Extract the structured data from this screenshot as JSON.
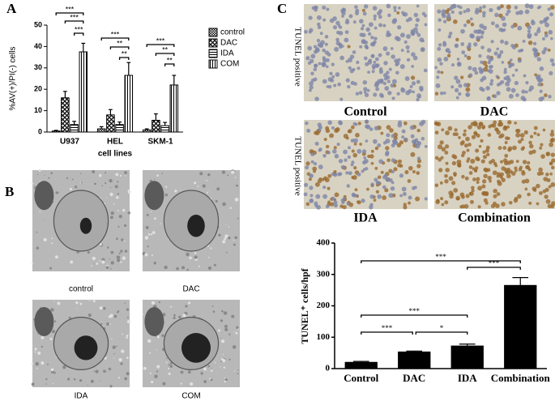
{
  "panel_labels": [
    "A",
    "B",
    "C"
  ],
  "chart_data": [
    {
      "type": "bar",
      "ylabel": "%AV(+)/PI(-) cells",
      "xlabel": "cell lines",
      "categories": [
        "U937",
        "HEL",
        "SKM-1"
      ],
      "series": [
        {
          "name": "control",
          "color": "#000000",
          "values": [
            0.5,
            1.5,
            1
          ],
          "errors": [
            0.3,
            1,
            0.5
          ]
        },
        {
          "name": "DAC",
          "color": "#000000",
          "values": [
            16,
            8,
            5.5
          ],
          "errors": [
            3,
            2.5,
            3
          ]
        },
        {
          "name": "IDA",
          "color": "#000000",
          "values": [
            3.5,
            3.5,
            3
          ],
          "errors": [
            1.5,
            1.2,
            1.5
          ]
        },
        {
          "name": "COM",
          "color": "#000000",
          "values": [
            37.5,
            26.5,
            22
          ],
          "errors": [
            4,
            6,
            4.5
          ]
        }
      ],
      "ylim": [
        0,
        50
      ],
      "yticks": [
        0,
        10,
        20,
        30,
        40,
        50
      ],
      "annotations": [
        "***",
        "***",
        "***",
        "***",
        "**",
        "**",
        "***",
        "**",
        "**"
      ]
    },
    {
      "type": "bar",
      "ylabel": "TUNEL⁺ cells/hpf",
      "categories": [
        "Control",
        "DAC",
        "IDA",
        "Combination"
      ],
      "values": [
        20,
        53,
        72,
        265
      ],
      "errors": [
        3,
        3,
        6,
        25
      ],
      "color": "#000000",
      "ylim": [
        0,
        400
      ],
      "yticks": [
        0,
        100,
        200,
        300,
        400
      ],
      "annotations": [
        "***",
        "***",
        "***",
        "***",
        "*"
      ]
    }
  ],
  "tem_images": {
    "captions": [
      "control",
      "DAC",
      "IDA",
      "COM"
    ]
  },
  "ihc_images": {
    "captions": [
      "Control",
      "DAC",
      "IDA",
      "Combination"
    ],
    "side_labels": [
      "TUNEL positive",
      "TUNEL positive"
    ]
  }
}
